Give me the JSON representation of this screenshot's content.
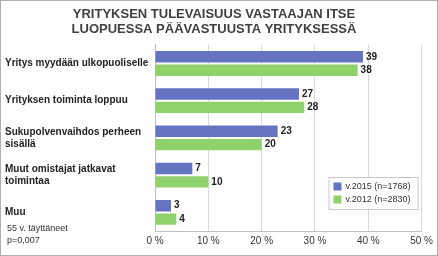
{
  "chart_data": {
    "type": "bar",
    "orientation": "horizontal",
    "title": "YRITYKSEN TULEVAISUUS VASTAAJAN ITSE LUOPUESSA PÄÄVASTUUSTA YRITYKSESSÄ",
    "categories": [
      "Yritys myydään ulkopuoliselle",
      "Yrityksen toiminta loppuu",
      "Sukupolvenvaihdos perheen sisällä",
      "Muut omistajat jatkavat toimintaa",
      "Muu"
    ],
    "series": [
      {
        "name": "v.2015 (n=1768)",
        "color": "#6673c0",
        "values": [
          39,
          27,
          23,
          7,
          3
        ]
      },
      {
        "name": "v.2012 (n=2830)",
        "color": "#8fd16a",
        "values": [
          38,
          28,
          20,
          10,
          4
        ]
      }
    ],
    "xlim": [
      0,
      50
    ],
    "xticks": [
      {
        "value": 0,
        "label": "0 %"
      },
      {
        "value": 10,
        "label": "10 %"
      },
      {
        "value": 20,
        "label": "20 %"
      },
      {
        "value": 30,
        "label": "30 %"
      },
      {
        "value": 40,
        "label": "40 %"
      },
      {
        "value": 50,
        "label": "50 %"
      }
    ],
    "grid": true,
    "data_labels": true,
    "legend": "lower right",
    "annotations": [
      "55 v. täyttäneet",
      "p=0,007"
    ]
  }
}
